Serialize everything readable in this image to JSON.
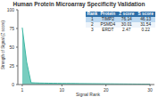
{
  "chart_data": {
    "type": "area",
    "title": "Human Protein Microarray Specificity Validation",
    "x_label": "Signal Rank",
    "y_label": "Strength of Signal (Z score)",
    "x": [
      1,
      2,
      3,
      4,
      5,
      6,
      7,
      8,
      9,
      10,
      11,
      12,
      13,
      14,
      15,
      16,
      17,
      18,
      19,
      20,
      21,
      22,
      23,
      24,
      25,
      26,
      27,
      28,
      29,
      30
    ],
    "values": [
      76.14,
      30.01,
      2.47,
      2.2,
      2.0,
      1.9,
      1.8,
      1.7,
      1.6,
      1.5,
      1.45,
      1.4,
      1.35,
      1.3,
      1.25,
      1.2,
      1.15,
      1.1,
      1.05,
      1.0,
      0.95,
      0.9,
      0.85,
      0.8,
      0.75,
      0.7,
      0.65,
      0.6,
      0.55,
      0.5
    ],
    "color": "#3fb8a4",
    "xlim": [
      0,
      31
    ],
    "xticks": [
      1,
      10,
      20,
      30
    ],
    "ylim": [
      0,
      100
    ],
    "yticks": [
      0,
      25,
      50,
      75,
      100
    ],
    "grid": false
  },
  "table": {
    "header": [
      "Rank",
      "Protein",
      "Z score",
      "S score"
    ],
    "rows": [
      [
        "1",
        "TIMP2",
        "76.14",
        "46.13"
      ],
      [
        "2",
        "PSMD4",
        "30.01",
        "31.54"
      ],
      [
        "3",
        "ERDT",
        "2.47",
        "0.22"
      ]
    ]
  }
}
